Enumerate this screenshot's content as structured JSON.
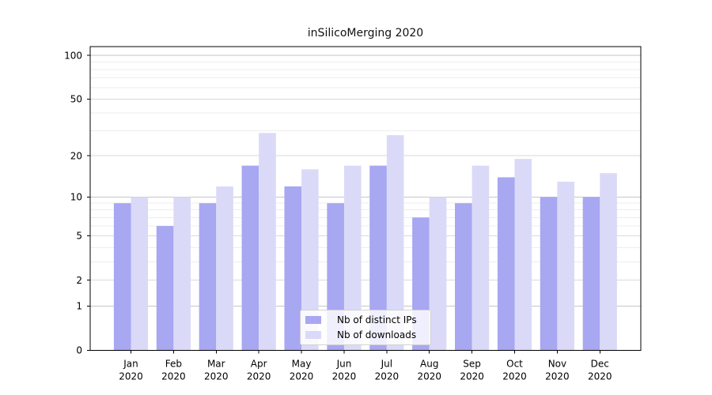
{
  "chart_data": {
    "type": "bar",
    "title": "inSilicoMerging 2020",
    "yscale": "log1p",
    "categories": [
      "Jan",
      "Feb",
      "Mar",
      "Apr",
      "May",
      "Jun",
      "Jul",
      "Aug",
      "Sep",
      "Oct",
      "Nov",
      "Dec"
    ],
    "year_label": "2020",
    "series": [
      {
        "name": "Nb of distinct IPs",
        "color": "#a7a7f2",
        "values": [
          9,
          6,
          9,
          17,
          12,
          9,
          17,
          7,
          9,
          14,
          10,
          10
        ]
      },
      {
        "name": "Nb of downloads",
        "color": "#dadaf8",
        "values": [
          10,
          10,
          12,
          29,
          16,
          17,
          28,
          10,
          17,
          19,
          13,
          15
        ]
      }
    ],
    "yticks": [
      100,
      50,
      20,
      10,
      5,
      2,
      1,
      0
    ],
    "ytick_labels": [
      "100",
      "50",
      "20",
      "10",
      "5",
      "2",
      "1",
      "0"
    ],
    "decade_gridlines": [
      1,
      10,
      100
    ],
    "labeled_gridlines": [
      2,
      5,
      20,
      50
    ],
    "minor_gridlines": [
      3,
      4,
      6,
      7,
      8,
      9,
      30,
      40,
      60,
      70,
      80,
      90
    ],
    "ylim": [
      0,
      116
    ],
    "grid": true,
    "legend_position": "lower center"
  },
  "colors": {
    "background": "#ffffff",
    "axis": "#000000",
    "decade_grid": "#c6c6c6",
    "labeled_grid": "#dadada",
    "minor_grid": "#ededed",
    "tick_label": "#000000"
  }
}
